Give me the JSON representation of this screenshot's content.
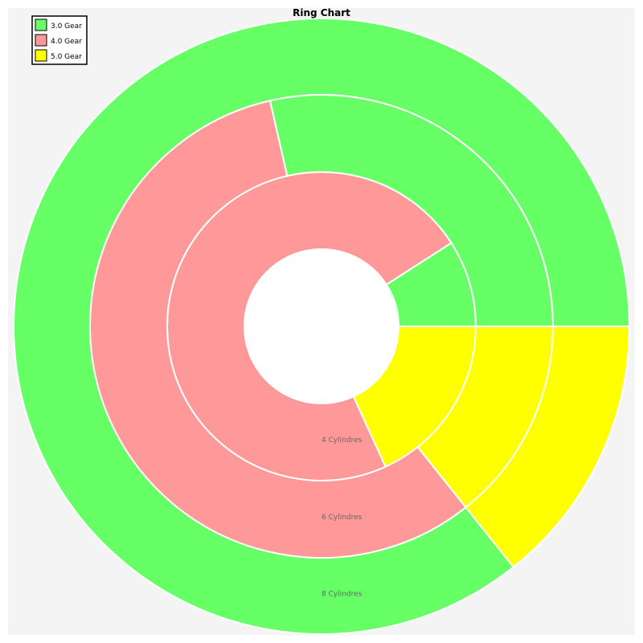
{
  "chart_data": {
    "type": "pie",
    "subtype": "ring",
    "title": "Ring Chart",
    "legend": {
      "placement": "top-left",
      "entries": [
        "3.0 Gear",
        "4.0 Gear",
        "5.0 Gear"
      ]
    },
    "series_colors": [
      "#66ff66",
      "#ff9999",
      "#ffff00"
    ],
    "rings": [
      {
        "label": "4 Cylindres",
        "values": [
          1,
          8,
          2
        ]
      },
      {
        "label": "6 Cylindres",
        "values": [
          2,
          4,
          1
        ]
      },
      {
        "label": "8 Cylindres",
        "values": [
          12,
          0,
          2
        ]
      }
    ]
  },
  "colors": {
    "plot_background": "#f4f4f4",
    "ring_border": "#ffffff",
    "center_hole": "#ffffff",
    "ring_label": "#666666"
  }
}
